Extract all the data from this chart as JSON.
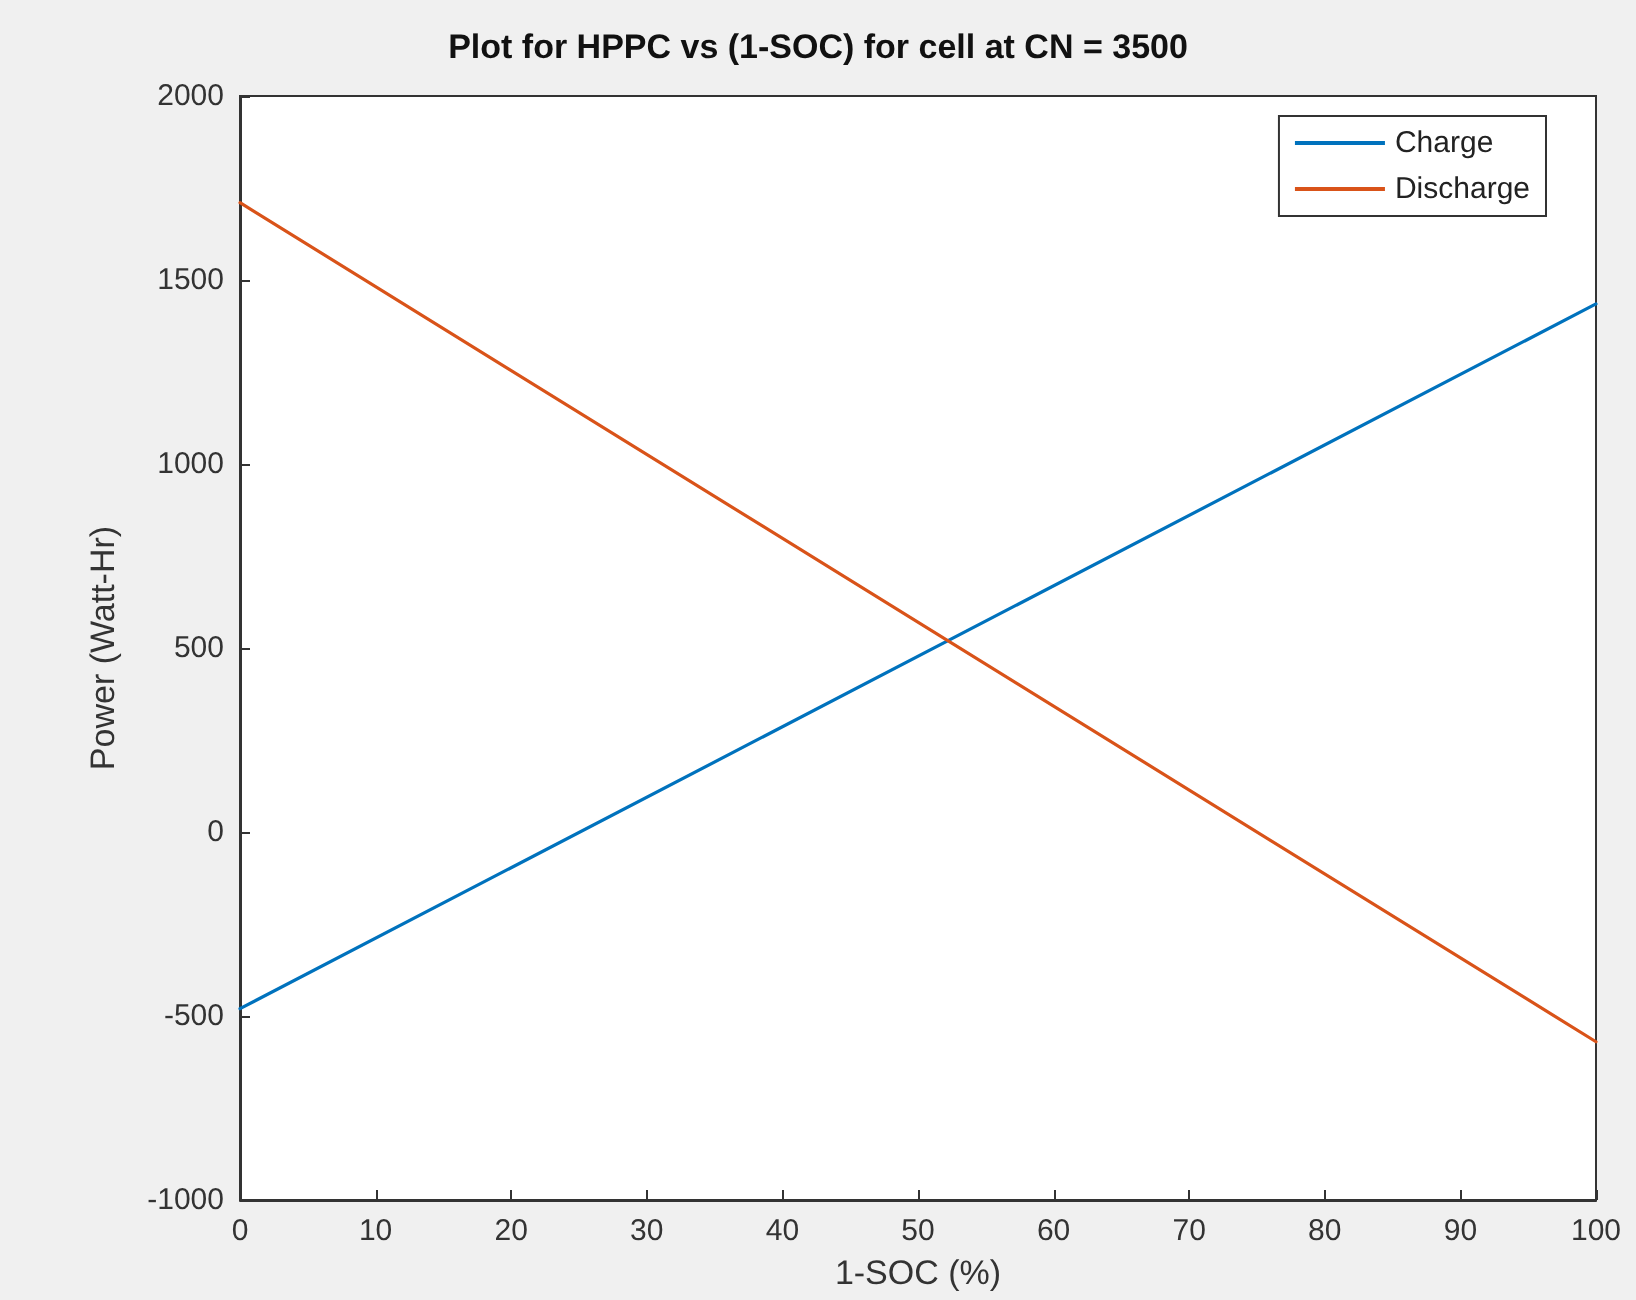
{
  "chart_data": {
    "type": "line",
    "title": "Plot for HPPC vs (1-SOC) for cell at CN = 3500",
    "xlabel": "1-SOC (%)",
    "ylabel": "Power (Watt-Hr)",
    "x": [
      0,
      100
    ],
    "series": [
      {
        "name": "Charge",
        "color": "#0072bd",
        "values": [
          -480,
          1435
        ]
      },
      {
        "name": "Discharge",
        "color": "#d95319",
        "values": [
          1710,
          -570
        ]
      }
    ],
    "xlim": [
      0,
      100
    ],
    "xticks": [
      0,
      10,
      20,
      30,
      40,
      50,
      60,
      70,
      80,
      90,
      100
    ],
    "ylim": [
      -1000,
      2000
    ],
    "yticks": [
      -1000,
      -500,
      0,
      500,
      1000,
      1500,
      2000
    ],
    "legend": "top right",
    "marker": "none",
    "line_style": "solid"
  }
}
